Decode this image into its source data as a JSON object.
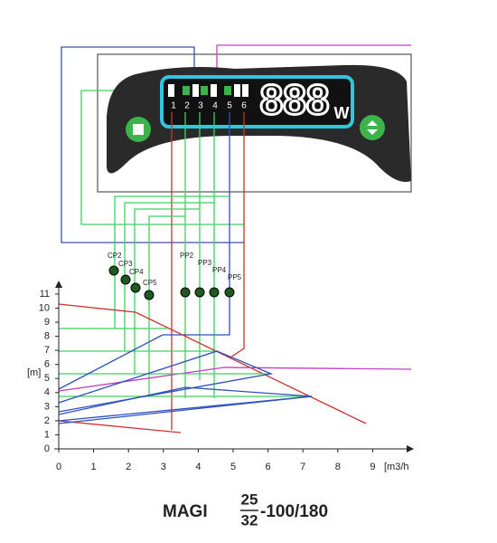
{
  "panel": {
    "outputs": [
      "1",
      "2",
      "3",
      "4",
      "5",
      "6"
    ],
    "display": "888",
    "unit": "W"
  },
  "modes": {
    "cp": [
      "CP2",
      "CP3",
      "CP4",
      "CP5"
    ],
    "pp": [
      "PP2",
      "PP3",
      "PP4",
      "PP5"
    ]
  },
  "chart": {
    "y_label": "[m]",
    "x_label": "[m3/h",
    "xticks": [
      0,
      1,
      2,
      3,
      4,
      5,
      6,
      7,
      8,
      9
    ],
    "yticks": [
      0,
      1,
      2,
      3,
      4,
      5,
      6,
      7,
      8,
      9,
      10,
      11
    ]
  },
  "title": {
    "name": "MAGI",
    "numerator": "25",
    "denominator": "32",
    "suffix": "-100/180"
  }
}
